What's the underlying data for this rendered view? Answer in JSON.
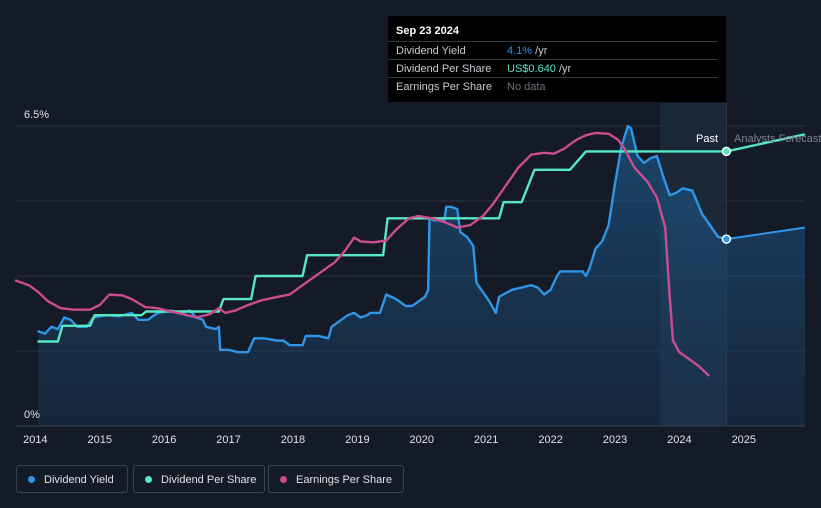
{
  "tooltip": {
    "date": "Sep 23 2024",
    "rows": [
      {
        "label": "Dividend Yield",
        "value": "4.1%",
        "suffix": " /yr",
        "color": "#2f95e6"
      },
      {
        "label": "Dividend Per Share",
        "value": "US$0.640",
        "suffix": " /yr",
        "color": "#56e8c2"
      },
      {
        "label": "Earnings Per Share",
        "value": "No data",
        "suffix": "",
        "color": "#6a717c"
      }
    ]
  },
  "chart_data": {
    "type": "line",
    "x_domain": [
      2013.7,
      2025.95
    ],
    "y_domain": [
      0,
      6.5
    ],
    "y_ticks": [
      {
        "value": 6.5,
        "label": "6.5%"
      },
      {
        "value": 0,
        "label": "0%"
      }
    ],
    "x_ticks": [
      2014,
      2015,
      2016,
      2017,
      2018,
      2019,
      2020,
      2021,
      2022,
      2023,
      2024,
      2025
    ],
    "past_label": "Past",
    "forecast_label": "Analysts Forecasts",
    "forecast_start": 2024.73,
    "shaded_start": 2023.7,
    "series": [
      {
        "name": "Dividend Yield",
        "color": "#2f95e6",
        "area": true,
        "points": [
          [
            2014.05,
            2.05
          ],
          [
            2014.15,
            2.0
          ],
          [
            2014.25,
            2.15
          ],
          [
            2014.35,
            2.1
          ],
          [
            2014.45,
            2.35
          ],
          [
            2014.55,
            2.3
          ],
          [
            2014.65,
            2.15
          ],
          [
            2014.8,
            2.15
          ],
          [
            2014.9,
            2.35
          ],
          [
            2015.1,
            2.4
          ],
          [
            2015.3,
            2.38
          ],
          [
            2015.5,
            2.45
          ],
          [
            2015.6,
            2.3
          ],
          [
            2015.75,
            2.3
          ],
          [
            2015.9,
            2.45
          ],
          [
            2016.1,
            2.5
          ],
          [
            2016.25,
            2.45
          ],
          [
            2016.4,
            2.5
          ],
          [
            2016.5,
            2.35
          ],
          [
            2016.6,
            2.3
          ],
          [
            2016.65,
            2.15
          ],
          [
            2016.8,
            2.1
          ],
          [
            2016.85,
            2.15
          ],
          [
            2016.87,
            1.65
          ],
          [
            2017.0,
            1.65
          ],
          [
            2017.15,
            1.6
          ],
          [
            2017.3,
            1.6
          ],
          [
            2017.4,
            1.9
          ],
          [
            2017.55,
            1.9
          ],
          [
            2017.75,
            1.85
          ],
          [
            2017.85,
            1.85
          ],
          [
            2017.95,
            1.75
          ],
          [
            2018.15,
            1.75
          ],
          [
            2018.2,
            1.95
          ],
          [
            2018.4,
            1.95
          ],
          [
            2018.55,
            1.9
          ],
          [
            2018.6,
            2.15
          ],
          [
            2018.75,
            2.3
          ],
          [
            2018.85,
            2.4
          ],
          [
            2018.95,
            2.45
          ],
          [
            2019.05,
            2.35
          ],
          [
            2019.15,
            2.4
          ],
          [
            2019.2,
            2.45
          ],
          [
            2019.35,
            2.45
          ],
          [
            2019.45,
            2.85
          ],
          [
            2019.6,
            2.75
          ],
          [
            2019.75,
            2.6
          ],
          [
            2019.85,
            2.6
          ],
          [
            2019.95,
            2.7
          ],
          [
            2020.05,
            2.8
          ],
          [
            2020.1,
            2.95
          ],
          [
            2020.12,
            4.5
          ],
          [
            2020.2,
            4.45
          ],
          [
            2020.3,
            4.5
          ],
          [
            2020.35,
            4.45
          ],
          [
            2020.38,
            4.75
          ],
          [
            2020.45,
            4.75
          ],
          [
            2020.55,
            4.7
          ],
          [
            2020.6,
            4.2
          ],
          [
            2020.7,
            4.1
          ],
          [
            2020.8,
            3.9
          ],
          [
            2020.85,
            3.1
          ],
          [
            2020.95,
            2.9
          ],
          [
            2021.05,
            2.7
          ],
          [
            2021.15,
            2.45
          ],
          [
            2021.2,
            2.8
          ],
          [
            2021.4,
            2.95
          ],
          [
            2021.55,
            3.0
          ],
          [
            2021.7,
            3.05
          ],
          [
            2021.8,
            3.0
          ],
          [
            2021.9,
            2.85
          ],
          [
            2022.0,
            2.95
          ],
          [
            2022.1,
            3.25
          ],
          [
            2022.15,
            3.35
          ],
          [
            2022.3,
            3.35
          ],
          [
            2022.4,
            3.35
          ],
          [
            2022.5,
            3.35
          ],
          [
            2022.55,
            3.25
          ],
          [
            2022.6,
            3.4
          ],
          [
            2022.7,
            3.85
          ],
          [
            2022.8,
            4.0
          ],
          [
            2022.9,
            4.35
          ],
          [
            2023.0,
            5.25
          ],
          [
            2023.1,
            6.05
          ],
          [
            2023.2,
            6.5
          ],
          [
            2023.25,
            6.45
          ],
          [
            2023.35,
            5.85
          ],
          [
            2023.45,
            5.7
          ],
          [
            2023.55,
            5.8
          ],
          [
            2023.65,
            5.85
          ],
          [
            2023.75,
            5.4
          ],
          [
            2023.85,
            5.0
          ],
          [
            2023.95,
            5.05
          ],
          [
            2024.05,
            5.15
          ],
          [
            2024.2,
            5.1
          ],
          [
            2024.35,
            4.6
          ],
          [
            2024.5,
            4.3
          ],
          [
            2024.6,
            4.1
          ],
          [
            2024.73,
            4.05
          ]
        ]
      },
      {
        "name": "Dividend Per Share",
        "color": "#56e8c2",
        "area": false,
        "points": [
          [
            2014.05,
            1.83
          ],
          [
            2014.35,
            1.83
          ],
          [
            2014.42,
            2.17
          ],
          [
            2014.85,
            2.17
          ],
          [
            2014.92,
            2.4
          ],
          [
            2015.65,
            2.4
          ],
          [
            2015.72,
            2.48
          ],
          [
            2016.85,
            2.48
          ],
          [
            2016.92,
            2.75
          ],
          [
            2017.35,
            2.75
          ],
          [
            2017.42,
            3.25
          ],
          [
            2018.15,
            3.25
          ],
          [
            2018.22,
            3.7
          ],
          [
            2019.4,
            3.7
          ],
          [
            2019.47,
            4.5
          ],
          [
            2021.2,
            4.5
          ],
          [
            2021.27,
            4.85
          ],
          [
            2021.55,
            4.85
          ],
          [
            2021.75,
            5.55
          ],
          [
            2022.3,
            5.55
          ],
          [
            2022.55,
            5.95
          ],
          [
            2024.73,
            5.95
          ]
        ],
        "forecast_points": [
          [
            2024.73,
            5.95
          ],
          [
            2025.95,
            6.32
          ]
        ]
      },
      {
        "name": "Earnings Per Share",
        "color": "#cc4d8f",
        "area": false,
        "points": [
          [
            2013.7,
            3.15
          ],
          [
            2013.9,
            3.05
          ],
          [
            2014.05,
            2.9
          ],
          [
            2014.2,
            2.7
          ],
          [
            2014.4,
            2.55
          ],
          [
            2014.6,
            2.52
          ],
          [
            2014.85,
            2.52
          ],
          [
            2015.0,
            2.62
          ],
          [
            2015.15,
            2.85
          ],
          [
            2015.35,
            2.83
          ],
          [
            2015.5,
            2.75
          ],
          [
            2015.7,
            2.58
          ],
          [
            2015.9,
            2.55
          ],
          [
            2016.1,
            2.48
          ],
          [
            2016.3,
            2.42
          ],
          [
            2016.5,
            2.35
          ],
          [
            2016.7,
            2.42
          ],
          [
            2016.85,
            2.55
          ],
          [
            2016.95,
            2.45
          ],
          [
            2017.1,
            2.5
          ],
          [
            2017.3,
            2.62
          ],
          [
            2017.5,
            2.72
          ],
          [
            2017.7,
            2.78
          ],
          [
            2017.95,
            2.85
          ],
          [
            2018.15,
            3.05
          ],
          [
            2018.4,
            3.3
          ],
          [
            2018.65,
            3.55
          ],
          [
            2018.8,
            3.78
          ],
          [
            2018.95,
            4.08
          ],
          [
            2019.05,
            4.0
          ],
          [
            2019.25,
            3.98
          ],
          [
            2019.45,
            4.02
          ],
          [
            2019.6,
            4.25
          ],
          [
            2019.8,
            4.5
          ],
          [
            2019.95,
            4.55
          ],
          [
            2020.15,
            4.5
          ],
          [
            2020.35,
            4.42
          ],
          [
            2020.55,
            4.3
          ],
          [
            2020.75,
            4.35
          ],
          [
            2020.95,
            4.55
          ],
          [
            2021.1,
            4.8
          ],
          [
            2021.3,
            5.2
          ],
          [
            2021.5,
            5.6
          ],
          [
            2021.7,
            5.88
          ],
          [
            2021.9,
            5.92
          ],
          [
            2022.05,
            5.9
          ],
          [
            2022.2,
            6.0
          ],
          [
            2022.4,
            6.2
          ],
          [
            2022.55,
            6.3
          ],
          [
            2022.7,
            6.35
          ],
          [
            2022.9,
            6.33
          ],
          [
            2023.05,
            6.2
          ],
          [
            2023.15,
            6.0
          ],
          [
            2023.3,
            5.6
          ],
          [
            2023.5,
            5.3
          ],
          [
            2023.65,
            4.95
          ],
          [
            2023.78,
            4.3
          ],
          [
            2023.85,
            2.8
          ],
          [
            2023.9,
            1.85
          ],
          [
            2024.0,
            1.6
          ],
          [
            2024.15,
            1.45
          ],
          [
            2024.3,
            1.3
          ],
          [
            2024.45,
            1.1
          ]
        ]
      }
    ]
  },
  "legend": [
    {
      "label": "Dividend Yield",
      "color": "#2f95e6"
    },
    {
      "label": "Dividend Per Share",
      "color": "#56e8c2"
    },
    {
      "label": "Earnings Per Share",
      "color": "#cc4d8f"
    }
  ]
}
